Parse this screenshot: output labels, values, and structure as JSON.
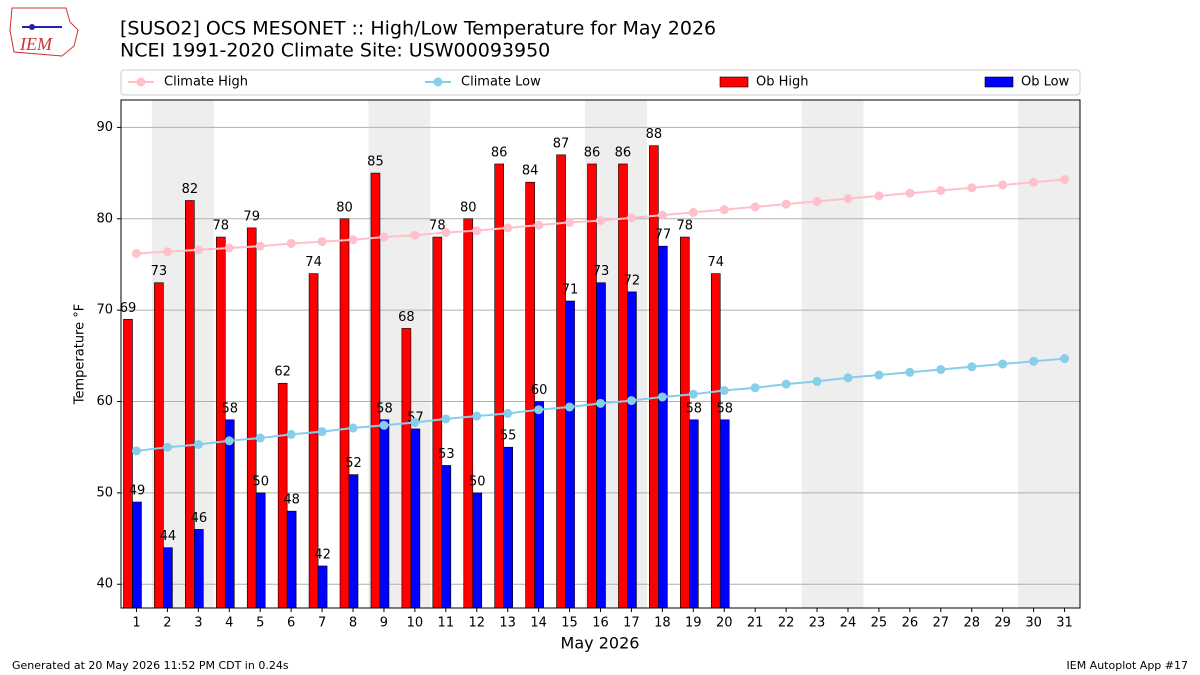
{
  "logo": "IEM",
  "chart_data": {
    "type": "bar",
    "title": "[SUSO2] OCS MESONET :: High/Low Temperature for May 2026",
    "subtitle": "NCEI 1991-2020 Climate Site: USW00093950",
    "x_label": "May 2026",
    "y_label": "Temperature °F",
    "footer_left": "Generated at 20 May 2026 11:52 PM CDT in 0.24s",
    "footer_right": "IEM Autoplot App #17",
    "categories": [
      "1",
      "2",
      "3",
      "4",
      "5",
      "6",
      "7",
      "8",
      "9",
      "10",
      "11",
      "12",
      "13",
      "14",
      "15",
      "16",
      "17",
      "18",
      "19",
      "20",
      "21",
      "22",
      "23",
      "24",
      "25",
      "26",
      "27",
      "28",
      "29",
      "30",
      "31"
    ],
    "series": [
      {
        "name": "Climate High",
        "kind": "line",
        "color": "#ffc0cb",
        "values": [
          76.2,
          76.4,
          76.6,
          76.8,
          77.0,
          77.3,
          77.5,
          77.7,
          78.0,
          78.2,
          78.5,
          78.7,
          79.0,
          79.3,
          79.6,
          79.8,
          80.1,
          80.4,
          80.7,
          81.0,
          81.3,
          81.6,
          81.9,
          82.2,
          82.5,
          82.8,
          83.1,
          83.4,
          83.7,
          84.0,
          84.3
        ]
      },
      {
        "name": "Climate Low",
        "kind": "line",
        "color": "#87ceeb",
        "values": [
          54.6,
          55.0,
          55.3,
          55.7,
          56.0,
          56.4,
          56.7,
          57.1,
          57.4,
          57.7,
          58.1,
          58.4,
          58.7,
          59.1,
          59.4,
          59.8,
          60.1,
          60.5,
          60.8,
          61.2,
          61.5,
          61.9,
          62.2,
          62.6,
          62.9,
          63.2,
          63.5,
          63.8,
          64.1,
          64.4,
          64.7
        ]
      },
      {
        "name": "Ob High",
        "kind": "bar",
        "color": "#ff0000",
        "values": [
          69,
          73,
          82,
          78,
          79,
          62,
          74,
          80,
          85,
          68,
          78,
          80,
          86,
          84,
          87,
          86,
          86,
          88,
          78,
          74,
          null,
          null,
          null,
          null,
          null,
          null,
          null,
          null,
          null,
          null,
          null
        ]
      },
      {
        "name": "Ob Low",
        "kind": "bar",
        "color": "#0000ff",
        "values": [
          49,
          44,
          46,
          58,
          50,
          48,
          42,
          52,
          58,
          57,
          53,
          50,
          55,
          60,
          71,
          73,
          72,
          77,
          58,
          58,
          null,
          null,
          null,
          null,
          null,
          null,
          null,
          null,
          null,
          null,
          null
        ]
      }
    ],
    "ylim": [
      37.4,
      93
    ],
    "yticks": [
      40,
      50,
      60,
      70,
      80,
      90
    ],
    "grid": true,
    "legend": "top"
  }
}
